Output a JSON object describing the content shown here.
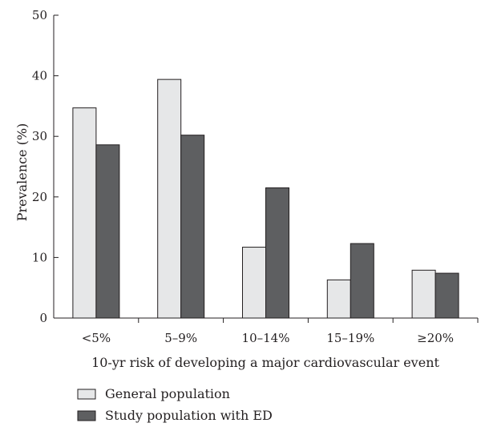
{
  "chart_data": {
    "type": "bar",
    "categories": [
      "<5%",
      "5–9%",
      "10–14%",
      "15–19%",
      "≥20%"
    ],
    "series": [
      {
        "name": "General population",
        "values": [
          34.7,
          39.4,
          11.7,
          6.3,
          7.9
        ],
        "color": "#e6e7e8"
      },
      {
        "name": "Study population with ED",
        "values": [
          28.6,
          30.2,
          21.5,
          12.3,
          7.4
        ],
        "color": "#5e5f61"
      }
    ],
    "title": "",
    "xlabel": "10-yr risk of developing a major cardiovascular event",
    "ylabel": "Prevalence (%)",
    "ylim": [
      0,
      50
    ],
    "yticks": [
      0,
      10,
      20,
      30,
      40,
      50
    ],
    "grid": false,
    "legend_position": "bottom-left",
    "colors": {
      "axis": "#231f20",
      "bar_outline": "#231f20"
    }
  }
}
